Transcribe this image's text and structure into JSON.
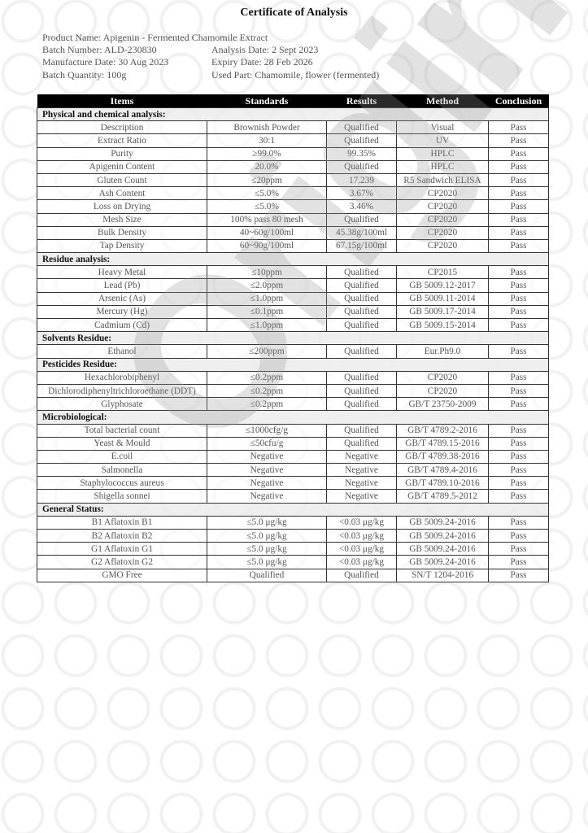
{
  "title": "Certificate of Analysis",
  "info": {
    "product_name": "Product Name: Apigenin - Fermented Chamomile Extract",
    "batch_number": "Batch Number: ALD-230830",
    "analysis_date": "Analysis Date: 2 Sept 2023",
    "manufacture_date": "Manufacture Date: 30 Aug 2023",
    "expiry_date": "Expiry Date: 28 Feb 2026",
    "batch_quantity": "Batch Quantity: 100g",
    "used_part": "Used Part: Chamomile, flower (fermented)"
  },
  "watermark": "Original",
  "table": {
    "headers": [
      "Items",
      "Standards",
      "Results",
      "Method",
      "Conclusion"
    ],
    "sections": [
      {
        "title": "Physical and chemical analysis:",
        "rows": [
          [
            "Description",
            "Brownish Powder",
            "Qualified",
            "Visual",
            "Pass"
          ],
          [
            "Extract Ratio",
            "30:1",
            "Qualified",
            "UV",
            "Pass"
          ],
          [
            "Purity",
            "≥99.0%",
            "99.35%",
            "HPLC",
            "Pass"
          ],
          [
            "Apigenin Content",
            "20.0%",
            "Qualified",
            "HPLC",
            "Pass"
          ],
          [
            "Gluten Count",
            "≤20ppm",
            "17.239",
            "R5 Sandwich ELISA",
            "Pass"
          ],
          [
            "Ash Content",
            "≤5.0%",
            "3.67%",
            "CP2020",
            "Pass"
          ],
          [
            "Loss on Drying",
            "≤5.0%",
            "3.46%",
            "CP2020",
            "Pass"
          ],
          [
            "Mesh Size",
            "100% pass 80 mesh",
            "Qualified",
            "CP2020",
            "Pass"
          ],
          [
            "Bulk Density",
            "40~60g/100ml",
            "45.38g/100ml",
            "CP2020",
            "Pass"
          ],
          [
            "Tap Density",
            "60~90g/100ml",
            "67.15g/100ml",
            "CP2020",
            "Pass"
          ]
        ]
      },
      {
        "title": "Residue analysis:",
        "rows": [
          [
            "Heavy Metal",
            "≤10ppm",
            "Qualified",
            "CP2015",
            "Pass"
          ],
          [
            "Lead (Pb)",
            "≤2.0ppm",
            "Qualified",
            "GB 5009.12-2017",
            "Pass"
          ],
          [
            "Arsenic (As)",
            "≤1.0ppm",
            "Qualified",
            "GB 5009.11-2014",
            "Pass"
          ],
          [
            "Mercury (Hg)",
            "≤0.1ppm",
            "Qualified",
            "GB 5009.17-2014",
            "Pass"
          ],
          [
            "Cadmium (Cd)",
            "≤1.0ppm",
            "Qualified",
            "GB 5009.15-2014",
            "Pass"
          ]
        ]
      },
      {
        "title": "Solvents Residue:",
        "rows": [
          [
            "Ethanol",
            "≤200ppm",
            "Qualified",
            "Eur.Ph9.0",
            "Pass"
          ]
        ]
      },
      {
        "title": "Pesticides Residue:",
        "rows": [
          [
            "Hexachlorobiphenyl",
            "≤0.2ppm",
            "Qualified",
            "CP2020",
            "Pass"
          ],
          [
            "Dichlorodiphenyltrichloroethane (DDT)",
            "≤0.2ppm",
            "Qualified",
            "CP2020",
            "Pass"
          ],
          [
            "Glyphosate",
            "≤0.2ppm",
            "Qualified",
            "GB/T 23750-2009",
            "Pass"
          ]
        ]
      },
      {
        "title": "Microbiological:",
        "rows": [
          [
            "Total bacterial count",
            "≤1000cfg/g",
            "Qualified",
            "GB/T 4789.2-2016",
            "Pass"
          ],
          [
            "Yeast & Mould",
            "≤50cfu/g",
            "Qualified",
            "GB/T 4789.15-2016",
            "Pass"
          ],
          [
            "E.coil",
            "Negative",
            "Negative",
            "GB/T 4789.38-2016",
            "Pass"
          ],
          [
            "Salmonella",
            "Negative",
            "Negative",
            "GB/T 4789.4-2016",
            "Pass"
          ],
          [
            "Staphylococcus aureus",
            "Negative",
            "Negative",
            "GB/T 4789.10-2016",
            "Pass"
          ],
          [
            "Shigella sonnei",
            "Negative",
            "Negative",
            "GB/T 4789.5-2012",
            "Pass"
          ]
        ]
      },
      {
        "title": "General Status:",
        "rows": [
          [
            "B1 Aflatoxin B1",
            "≤5.0 μg/kg",
            "<0.03 μg/kg",
            "GB 5009.24-2016",
            "Pass"
          ],
          [
            "B2 Aflatoxin B2",
            "≤5.0 μg/kg",
            "<0.03 μg/kg",
            "GB 5009.24-2016",
            "Pass"
          ],
          [
            "G1 Aflatoxin G1",
            "≤5.0 μg/kg",
            "<0.03 μg/kg",
            "GB 5009.24-2016",
            "Pass"
          ],
          [
            "G2 Aflatoxin G2",
            "≤5.0 μg/kg",
            "<0.03 μg/kg",
            "GB 5009.24-2016",
            "Pass"
          ],
          [
            "GMO Free",
            "Qualified",
            "Qualified",
            "SN/T 1204-2016",
            "Pass"
          ]
        ]
      }
    ]
  }
}
